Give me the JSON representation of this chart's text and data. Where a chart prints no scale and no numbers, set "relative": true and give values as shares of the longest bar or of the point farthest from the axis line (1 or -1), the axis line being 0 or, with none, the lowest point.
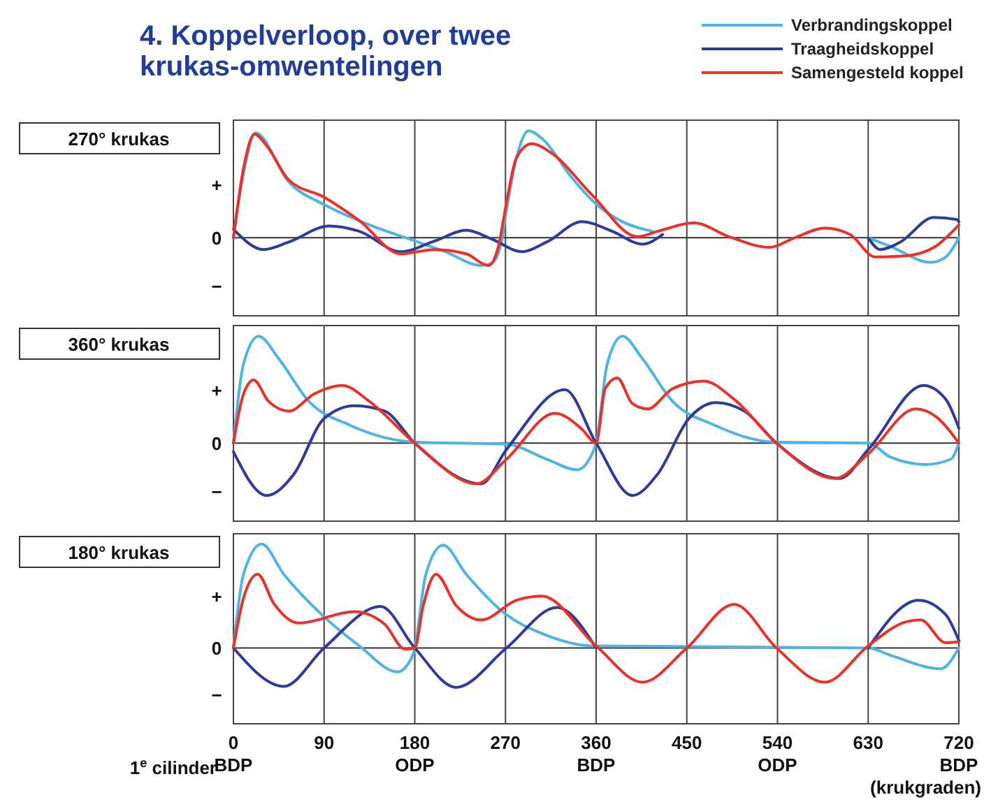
{
  "chart_data": [
    {
      "type": "line",
      "title": "4. Koppelverloop, over twee krukas-omwentelingen",
      "subtitle": "270° krukas",
      "relative": true,
      "xlim": [
        0,
        720
      ],
      "xticks": [
        {
          "value": 0,
          "label": null
        },
        {
          "value": 90,
          "label": null
        },
        {
          "value": 180,
          "label": null
        },
        {
          "value": 270,
          "label": null
        },
        {
          "value": 360,
          "label": null
        },
        {
          "value": 450,
          "label": null
        },
        {
          "value": 540,
          "label": null
        },
        {
          "value": 630,
          "label": null
        },
        {
          "value": 720,
          "label": null
        }
      ],
      "grid": "x",
      "tick_labels": false,
      "legend": "top right",
      "annotations": [
        "+",
        "0",
        "−"
      ],
      "series": [
        {
          "name": "Verbrandingskoppel",
          "color": "#4fb3e3",
          "x": [
            0,
            10,
            22,
            55,
            90,
            135,
            180,
            210,
            246,
            256,
            266,
            270,
            281,
            293,
            306,
            336,
            356,
            386,
            416,
            430,
            630,
            652,
            692,
            707,
            720
          ],
          "values": [
            0,
            0.6,
            0.98,
            0.52,
            0.31,
            0.12,
            -0.03,
            -0.13,
            -0.26,
            -0.24,
            -0.04,
            0.2,
            0.75,
            1,
            0.93,
            0.56,
            0.35,
            0.15,
            0.06,
            null,
            0,
            -0.08,
            -0.23,
            -0.18,
            0
          ]
        },
        {
          "name": "Traagheidskoppel",
          "color": "#2e3a9c",
          "x": [
            0,
            30,
            55,
            95,
            125,
            166,
            200,
            231,
            256,
            286,
            311,
            346,
            376,
            406,
            426,
            430,
            630,
            642,
            662,
            695,
            718,
            720
          ],
          "values": [
            0.08,
            -0.11,
            -0.04,
            0.11,
            0.06,
            -0.13,
            -0.03,
            0.07,
            -0.01,
            -0.13,
            -0.04,
            0.15,
            0.06,
            -0.06,
            0.03,
            null,
            0,
            -0.11,
            -0.04,
            0.19,
            0.17,
            0.15
          ]
        },
        {
          "name": "Samengesteld koppel",
          "color": "#e8322a",
          "x": [
            0,
            10,
            21,
            33,
            55,
            90,
            125,
            166,
            200,
            231,
            253,
            263,
            271,
            281,
            296,
            316,
            356,
            401,
            421,
            457,
            492,
            532,
            557,
            587,
            612,
            637,
            667,
            697,
            720
          ],
          "values": [
            0,
            0.65,
            0.97,
            0.86,
            0.54,
            0.38,
            0.16,
            -0.15,
            -0.11,
            -0.15,
            -0.26,
            -0.08,
            0.33,
            0.75,
            0.88,
            0.79,
            0.4,
            0.01,
            0.06,
            0.14,
            0.01,
            -0.09,
            0,
            0.09,
            0.03,
            -0.18,
            -0.17,
            -0.08,
            0.12
          ]
        }
      ]
    },
    {
      "type": "line",
      "title": "360° krukas",
      "relative": true,
      "xlim": [
        0,
        720
      ],
      "xticks": [
        {
          "value": 0,
          "label": null
        },
        {
          "value": 90,
          "label": null
        },
        {
          "value": 180,
          "label": null
        },
        {
          "value": 270,
          "label": null
        },
        {
          "value": 360,
          "label": null
        },
        {
          "value": 450,
          "label": null
        },
        {
          "value": 540,
          "label": null
        },
        {
          "value": 630,
          "label": null
        },
        {
          "value": 720,
          "label": null
        }
      ],
      "grid": "x",
      "tick_labels": false,
      "annotations": [
        "+",
        "0",
        "−"
      ],
      "series": [
        {
          "color": "#4fb3e3",
          "x": [
            0,
            10,
            25,
            45,
            75,
            115,
            180,
            271,
            311,
            341,
            356,
            360,
            371,
            386,
            406,
            436,
            477,
            537,
            630,
            652,
            687,
            712,
            720
          ],
          "values": [
            0,
            0.74,
            1,
            0.79,
            0.39,
            0.17,
            0.01,
            -0.01,
            -0.15,
            -0.25,
            -0.1,
            0,
            0.74,
            1,
            0.79,
            0.39,
            0.17,
            0.01,
            0,
            -0.13,
            -0.2,
            -0.15,
            0
          ]
        },
        {
          "color": "#2e3a9c",
          "x": [
            0,
            33,
            60,
            90,
            120,
            150,
            180,
            246,
            271,
            329,
            360,
            396,
            421,
            452,
            479,
            507,
            539,
            602,
            630,
            685,
            707,
            720
          ],
          "values": [
            -0.08,
            -0.49,
            -0.29,
            0.23,
            0.35,
            0.3,
            0,
            -0.38,
            -0.06,
            0.5,
            0,
            -0.49,
            -0.29,
            0.23,
            0.38,
            0.3,
            0,
            -0.33,
            -0.06,
            0.54,
            0.41,
            0.14
          ]
        },
        {
          "color": "#e8322a",
          "x": [
            0,
            10,
            20,
            35,
            55,
            80,
            108,
            135,
            180,
            241,
            271,
            319,
            346,
            360,
            369,
            381,
            396,
            411,
            436,
            467,
            497,
            539,
            597,
            630,
            677,
            697,
            720
          ],
          "values": [
            0,
            0.46,
            0.59,
            0.39,
            0.3,
            0.46,
            0.54,
            0.39,
            0,
            -0.38,
            -0.15,
            0.28,
            0.13,
            0,
            0.51,
            0.61,
            0.37,
            0.32,
            0.51,
            0.58,
            0.41,
            0,
            -0.33,
            -0.1,
            0.32,
            0.25,
            0
          ]
        }
      ]
    },
    {
      "type": "line",
      "title": "180° krukas",
      "relative": true,
      "xlim": [
        0,
        720
      ],
      "xticks": [
        {
          "value": 0,
          "label": "0\nBDP"
        },
        90,
        {
          "value": 180,
          "label": "180\nODP"
        },
        270,
        {
          "value": 360,
          "label": "360\nBDP"
        },
        450,
        {
          "value": 540,
          "label": "540\nODP"
        },
        630,
        {
          "value": 720,
          "label": "720\nBDP"
        }
      ],
      "grid": "x",
      "tick_labels": "x",
      "xlabel": "(krukgraden)",
      "annotations": [
        "+",
        "0",
        "−",
        "1$^{e}$ cilinder"
      ],
      "series": [
        {
          "color": "#4fb3e3",
          "x": [
            0,
            10,
            28,
            50,
            90,
            125,
            163,
            178,
            180,
            191,
            208,
            231,
            271,
            306,
            356,
            630,
            652,
            702,
            720
          ],
          "values": [
            0,
            0.71,
            1,
            0.71,
            0.3,
            0.02,
            -0.23,
            -0.07,
            0,
            0.71,
            0.99,
            0.71,
            0.32,
            0.14,
            0.02,
            0,
            -0.07,
            -0.2,
            0
          ]
        },
        {
          "color": "#2e3a9c",
          "x": [
            0,
            50,
            90,
            146,
            180,
            221,
            271,
            321,
            360,
            361,
            629,
            630,
            680,
            707,
            720
          ],
          "values": [
            0,
            -0.37,
            0,
            0.4,
            0,
            -0.38,
            0,
            0.39,
            0,
            null,
            null,
            0,
            0.46,
            0.32,
            0.07
          ]
        },
        {
          "color": "#e8322a",
          "x": [
            0,
            10,
            24,
            40,
            65,
            120,
            150,
            170,
            180,
            188,
            201,
            221,
            246,
            281,
            306,
            360,
            406,
            450,
            497,
            539,
            587,
            630,
            667,
            682,
            707,
            720
          ],
          "values": [
            0,
            0.48,
            0.71,
            0.43,
            0.24,
            0.35,
            0.23,
            -0.01,
            0,
            0.39,
            0.71,
            0.41,
            0.27,
            0.46,
            0.5,
            0.02,
            -0.33,
            0,
            0.42,
            0,
            -0.33,
            0.02,
            0.25,
            0.27,
            0.05,
            0.06
          ]
        }
      ]
    }
  ]
}
